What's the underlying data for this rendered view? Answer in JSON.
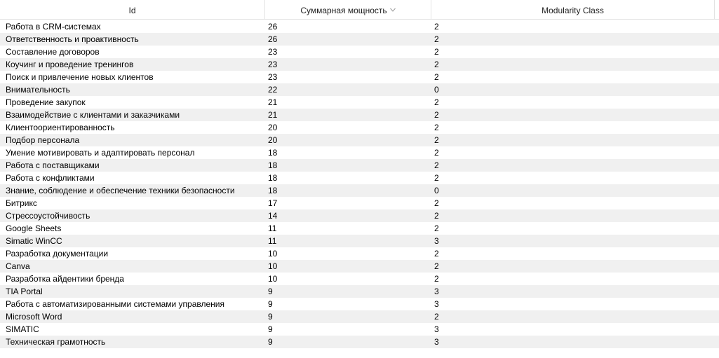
{
  "columns": [
    {
      "label": "Id"
    },
    {
      "label": "Суммарная мощность",
      "sort_icon": "chevron-down-icon"
    },
    {
      "label": "Modularity Class"
    }
  ],
  "rows": [
    [
      "Работа в CRM-системах",
      "26",
      "2"
    ],
    [
      "Ответственность и проактивность",
      "26",
      "2"
    ],
    [
      "Составление договоров",
      "23",
      "2"
    ],
    [
      "Коучинг и проведение тренингов",
      "23",
      "2"
    ],
    [
      "Поиск и привлечение новых клиентов",
      "23",
      "2"
    ],
    [
      "Внимательность",
      "22",
      "0"
    ],
    [
      "Проведение закупок",
      "21",
      "2"
    ],
    [
      "Взаимодействие с клиентами и заказчиками",
      "21",
      "2"
    ],
    [
      "Клиентоориентированность",
      "20",
      "2"
    ],
    [
      "Подбор персонала",
      "20",
      "2"
    ],
    [
      "Умение мотивировать и адаптировать персонал",
      "18",
      "2"
    ],
    [
      "Работа с поставщиками",
      "18",
      "2"
    ],
    [
      "Работа с конфликтами",
      "18",
      "2"
    ],
    [
      "Знание, соблюдение и обеспечение техники безопасности",
      "18",
      "0"
    ],
    [
      "Битрикс",
      "17",
      "2"
    ],
    [
      "Стрессоустойчивость",
      "14",
      "2"
    ],
    [
      "Google Sheets",
      "11",
      "2"
    ],
    [
      "Simatic WinCC",
      "11",
      "3"
    ],
    [
      "Разработка документации",
      "10",
      "2"
    ],
    [
      "Canva",
      "10",
      "2"
    ],
    [
      "Разработка айдентики бренда",
      "10",
      "2"
    ],
    [
      "TIA Portal",
      "9",
      "3"
    ],
    [
      "Работа с автоматизированными системами управления",
      "9",
      "3"
    ],
    [
      "Microsoft Word",
      "9",
      "2"
    ],
    [
      "SIMATIC",
      "9",
      "3"
    ],
    [
      "Техническая грамотность",
      "9",
      "3"
    ]
  ]
}
